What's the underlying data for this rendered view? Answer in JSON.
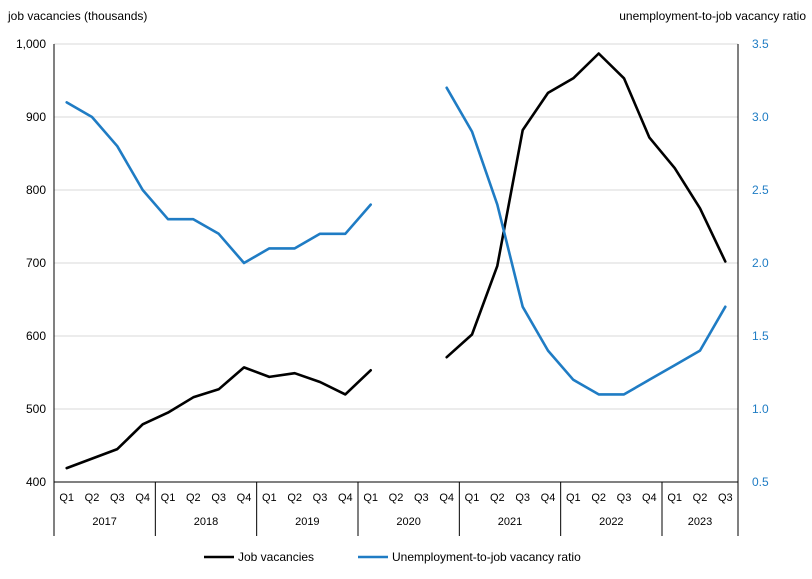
{
  "chart_data": {
    "type": "line",
    "y_left": {
      "label": "job vacancies (thousands)",
      "min": 400,
      "max": 1000,
      "ticks": [
        "400",
        "500",
        "600",
        "700",
        "800",
        "900",
        "1,000"
      ]
    },
    "y_right": {
      "label": "unemployment-to-job vacancy ratio",
      "min": 0.5,
      "max": 3.5,
      "ticks": [
        "0.5",
        "1.0",
        "1.5",
        "2.0",
        "2.5",
        "3.0",
        "3.5"
      ]
    },
    "quarters": [
      "Q1",
      "Q2",
      "Q3",
      "Q4",
      "Q1",
      "Q2",
      "Q3",
      "Q4",
      "Q1",
      "Q2",
      "Q3",
      "Q4",
      "Q1",
      "Q2",
      "Q3",
      "Q4",
      "Q1",
      "Q2",
      "Q3",
      "Q4",
      "Q1",
      "Q2",
      "Q3",
      "Q4",
      "Q1",
      "Q2",
      "Q3"
    ],
    "years": [
      {
        "label": "2017",
        "start": 0,
        "count": 4
      },
      {
        "label": "2018",
        "start": 4,
        "count": 4
      },
      {
        "label": "2019",
        "start": 8,
        "count": 4
      },
      {
        "label": "2020",
        "start": 12,
        "count": 4
      },
      {
        "label": "2021",
        "start": 16,
        "count": 4
      },
      {
        "label": "2022",
        "start": 20,
        "count": 4
      },
      {
        "label": "2023",
        "start": 24,
        "count": 3
      }
    ],
    "grid": "horizontal",
    "legend_position": "bottom",
    "series": [
      {
        "name": "Job vacancies",
        "axis": "left",
        "color": "#000000",
        "values": [
          419,
          432,
          445,
          479,
          495,
          516,
          527,
          557,
          544,
          549,
          537,
          520,
          553,
          null,
          null,
          571,
          602,
          696,
          882,
          933,
          953,
          987,
          953,
          872,
          830,
          775,
          702
        ]
      },
      {
        "name": "Unemployment-to-job vacancy ratio",
        "axis": "right",
        "color": "#1f7cc4",
        "values": [
          3.1,
          3.0,
          2.8,
          2.5,
          2.3,
          2.3,
          2.2,
          2.0,
          2.1,
          2.1,
          2.2,
          2.2,
          2.4,
          null,
          null,
          3.2,
          2.9,
          2.4,
          1.7,
          1.4,
          1.2,
          1.1,
          1.1,
          1.2,
          1.3,
          1.4,
          1.7
        ]
      }
    ]
  }
}
